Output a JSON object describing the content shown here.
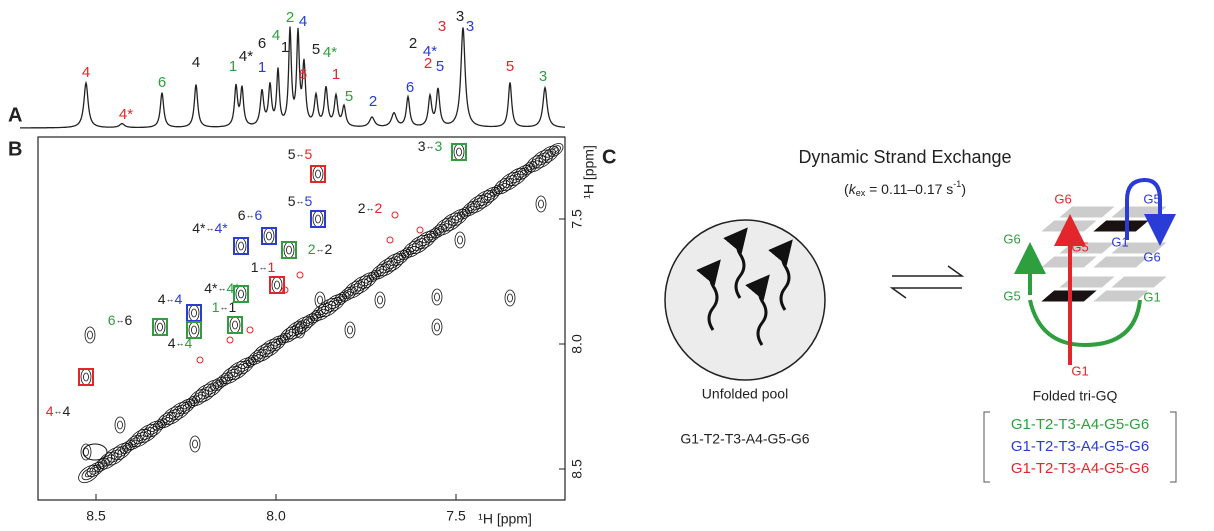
{
  "panels": {
    "a": "A",
    "b": "B",
    "c": "C"
  },
  "spectrum_1d": {
    "peak_labels": [
      {
        "text": "4",
        "color": "#e3262b"
      },
      {
        "text": "4*",
        "color": "#e3262b"
      },
      {
        "text": "6",
        "color": "#2e9e3e"
      },
      {
        "text": "4",
        "color": "#222222"
      },
      {
        "text": "1",
        "color": "#2e9e3e"
      },
      {
        "text": "4*",
        "color": "#222222"
      },
      {
        "text": "6",
        "color": "#222222"
      },
      {
        "text": "1",
        "color": "#2b3bd6"
      },
      {
        "text": "4",
        "color": "#2e9e3e"
      },
      {
        "text": "1",
        "color": "#222222"
      },
      {
        "text": "2",
        "color": "#2e9e3e"
      },
      {
        "text": "4",
        "color": "#2b3bd6"
      },
      {
        "text": "6",
        "color": "#e3262b"
      },
      {
        "text": "5",
        "color": "#222222"
      },
      {
        "text": "4*",
        "color": "#2e9e3e"
      },
      {
        "text": "1",
        "color": "#e3262b"
      },
      {
        "text": "5",
        "color": "#2e9e3e"
      },
      {
        "text": "2",
        "color": "#2b3bd6"
      },
      {
        "text": "2",
        "color": "#222222"
      },
      {
        "text": "4*",
        "color": "#2b3bd6"
      },
      {
        "text": "6",
        "color": "#2b3bd6"
      },
      {
        "text": "2",
        "color": "#e3262b"
      },
      {
        "text": "5",
        "color": "#2b3bd6"
      },
      {
        "text": "3",
        "color": "#e3262b"
      },
      {
        "text": "3",
        "color": "#222222"
      },
      {
        "text": "3",
        "color": "#2b3bd6"
      },
      {
        "text": "5",
        "color": "#e3262b"
      },
      {
        "text": "3",
        "color": "#2e9e3e"
      }
    ]
  },
  "spectrum_2d": {
    "x_axis": {
      "label": "¹H [ppm]",
      "ticks": [
        "8.5",
        "8.0",
        "7.5"
      ]
    },
    "y_axis": {
      "label": "¹H [ppm]",
      "ticks": [
        "7.5",
        "8.0",
        "8.5"
      ]
    },
    "arrow": "↔",
    "cross_peaks": [
      {
        "left": "5",
        "left_color": "#222222",
        "right": "5",
        "right_color": "#e3262b",
        "box_color": "#e3262b"
      },
      {
        "left": "3",
        "left_color": "#222222",
        "right": "3",
        "right_color": "#2e9e3e",
        "box_color": "#2e9e3e"
      },
      {
        "left": "5",
        "left_color": "#222222",
        "right": "5",
        "right_color": "#2b3bd6",
        "box_color": "#2b3bd6"
      },
      {
        "left": "6",
        "left_color": "#222222",
        "right": "6",
        "right_color": "#2b3bd6",
        "box_color": "#2b3bd6"
      },
      {
        "left": "2",
        "left_color": "#222222",
        "right": "2",
        "right_color": "#e3262b"
      },
      {
        "left": "4*",
        "left_color": "#222222",
        "right": "4*",
        "right_color": "#2b3bd6",
        "box_color": "#2b3bd6"
      },
      {
        "left": "2",
        "left_color": "#2e9e3e",
        "right": "2",
        "right_color": "#222222",
        "box_color": "#2e9e3e"
      },
      {
        "left": "1",
        "left_color": "#222222",
        "right": "1",
        "right_color": "#e3262b",
        "box_color": "#e3262b"
      },
      {
        "left": "4*",
        "left_color": "#222222",
        "right": "4*",
        "right_color": "#2e9e3e",
        "box_color": "#2e9e3e"
      },
      {
        "left": "4",
        "left_color": "#222222",
        "right": "4",
        "right_color": "#2b3bd6",
        "box_color": "#2b3bd6"
      },
      {
        "left": "1",
        "left_color": "#2e9e3e",
        "right": "1",
        "right_color": "#222222",
        "box_color": "#2e9e3e"
      },
      {
        "left": "6",
        "left_color": "#2e9e3e",
        "right": "6",
        "right_color": "#222222",
        "box_color": "#2e9e3e"
      },
      {
        "left": "4",
        "left_color": "#222222",
        "right": "4",
        "right_color": "#2e9e3e",
        "box_color": "#2e9e3e"
      },
      {
        "left": "4",
        "left_color": "#e3262b",
        "right": "4",
        "right_color": "#222222",
        "box_color": "#e3262b"
      }
    ]
  },
  "scheme": {
    "title": "Dynamic Strand Exchange",
    "rate": {
      "prefix": "(",
      "symbol": "k",
      "subscript": "ex",
      "value": " = 0.11–0.17 s",
      "superscript": "-1",
      "suffix": ")"
    },
    "unfolded": {
      "label": "Unfolded pool",
      "sequence": "G1-T2-T3-A4-G5-G6"
    },
    "folded": {
      "label": "Folded tri-GQ",
      "strand_labels": [
        {
          "text": "G6",
          "color": "#e3262b"
        },
        {
          "text": "G5",
          "color": "#2b3bd6"
        },
        {
          "text": "G6",
          "color": "#2e9e3e"
        },
        {
          "text": "G5",
          "color": "#e3262b"
        },
        {
          "text": "G1",
          "color": "#2b3bd6"
        },
        {
          "text": "G6",
          "color": "#2b3bd6"
        },
        {
          "text": "G5",
          "color": "#2e9e3e"
        },
        {
          "text": "G1",
          "color": "#2e9e3e"
        },
        {
          "text": "G1",
          "color": "#e3262b"
        }
      ],
      "sequences": [
        {
          "text": "G1-T2-T3-A4-G5-G6",
          "color": "#2e9e3e"
        },
        {
          "text": "G1-T2-T3-A4-G5-G6",
          "color": "#2b3bd6"
        },
        {
          "text": "G1-T2-T3-A4-G5-G6",
          "color": "#e3262b"
        }
      ]
    }
  }
}
